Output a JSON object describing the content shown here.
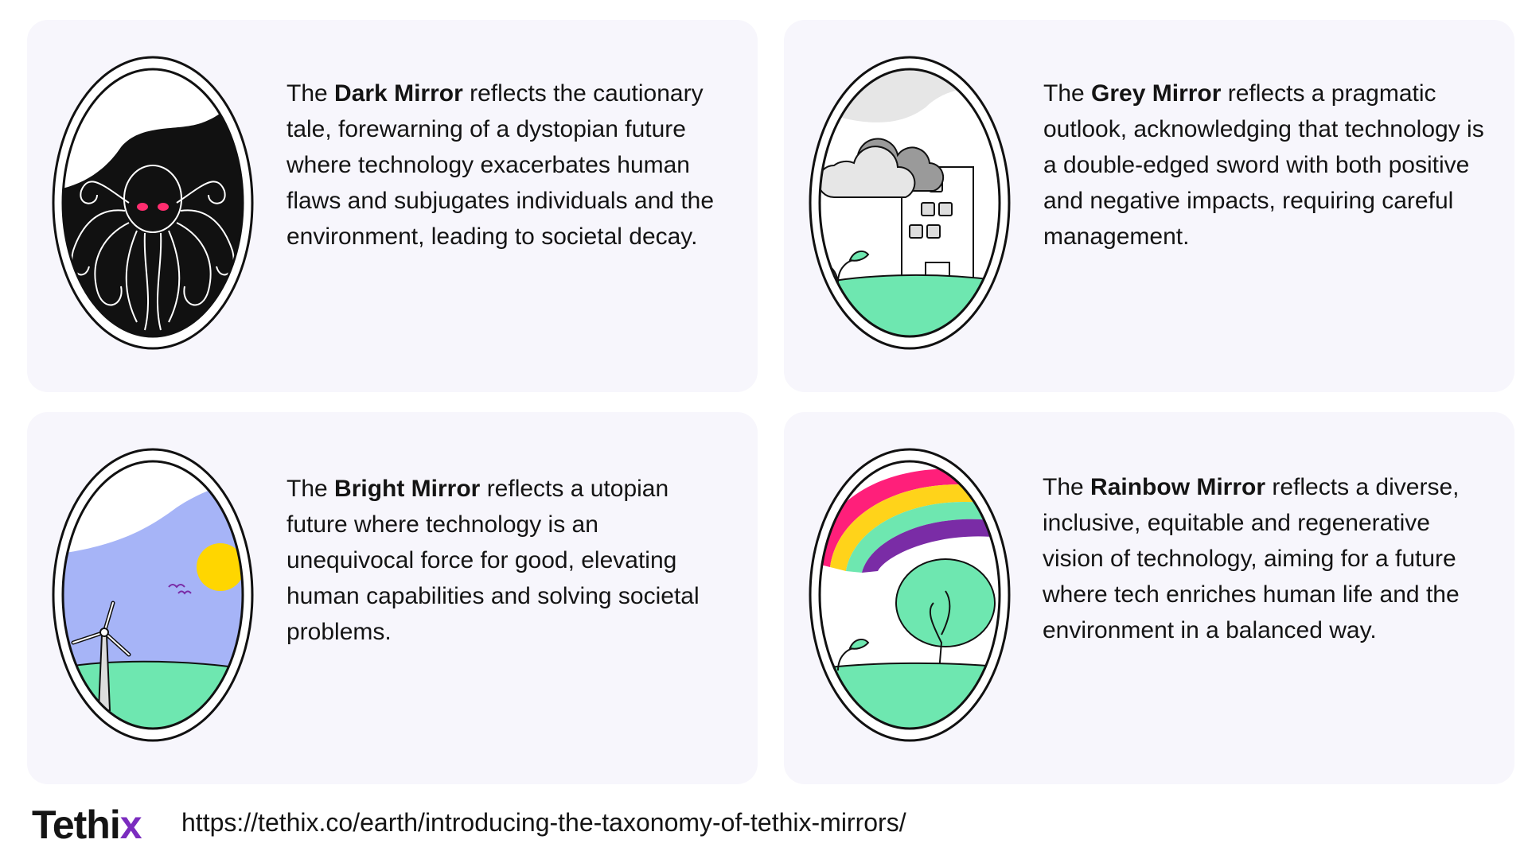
{
  "cards": [
    {
      "prefix": "The ",
      "name": "Dark Mirror",
      "body": " reflects the cautionary tale, forewarning of a dystopian future where technology exacerbates human flaws and subjugates individuals and the environment, leading to societal decay."
    },
    {
      "prefix": "The ",
      "name": "Grey Mirror",
      "body": " reflects a pragmatic outlook, acknowledging that technology is a double-edged sword with both positive and negative impacts, requiring careful management."
    },
    {
      "prefix": "The ",
      "name": "Bright Mirror",
      "body": " reflects a utopian future where technology is an unequivocal force for good, elevating human capabilities and solving societal problems."
    },
    {
      "prefix": "The ",
      "name": "Rainbow Mirror",
      "body": " reflects a diverse, inclusive, equitable and regenerative vision of technology, aiming for a future where tech enriches human life and the environment in a balanced way."
    }
  ],
  "footer": {
    "logo_main": "Tethi",
    "logo_accent": "x",
    "url": "https://tethix.co/earth/introducing-the-taxonomy-of-tethix-mirrors/"
  },
  "colors": {
    "card_bg": "#f7f6fc",
    "grass": "#6ee7b0",
    "sky": "#a6b4f7",
    "sun": "#ffd600",
    "rainbow_pink": "#ff1f7a",
    "rainbow_yellow": "#ffd31a",
    "rainbow_green": "#6ee7b0",
    "rainbow_purple": "#7a2ca6",
    "eyes": "#ff2d6f",
    "logo_accent": "#7b2cbf"
  }
}
